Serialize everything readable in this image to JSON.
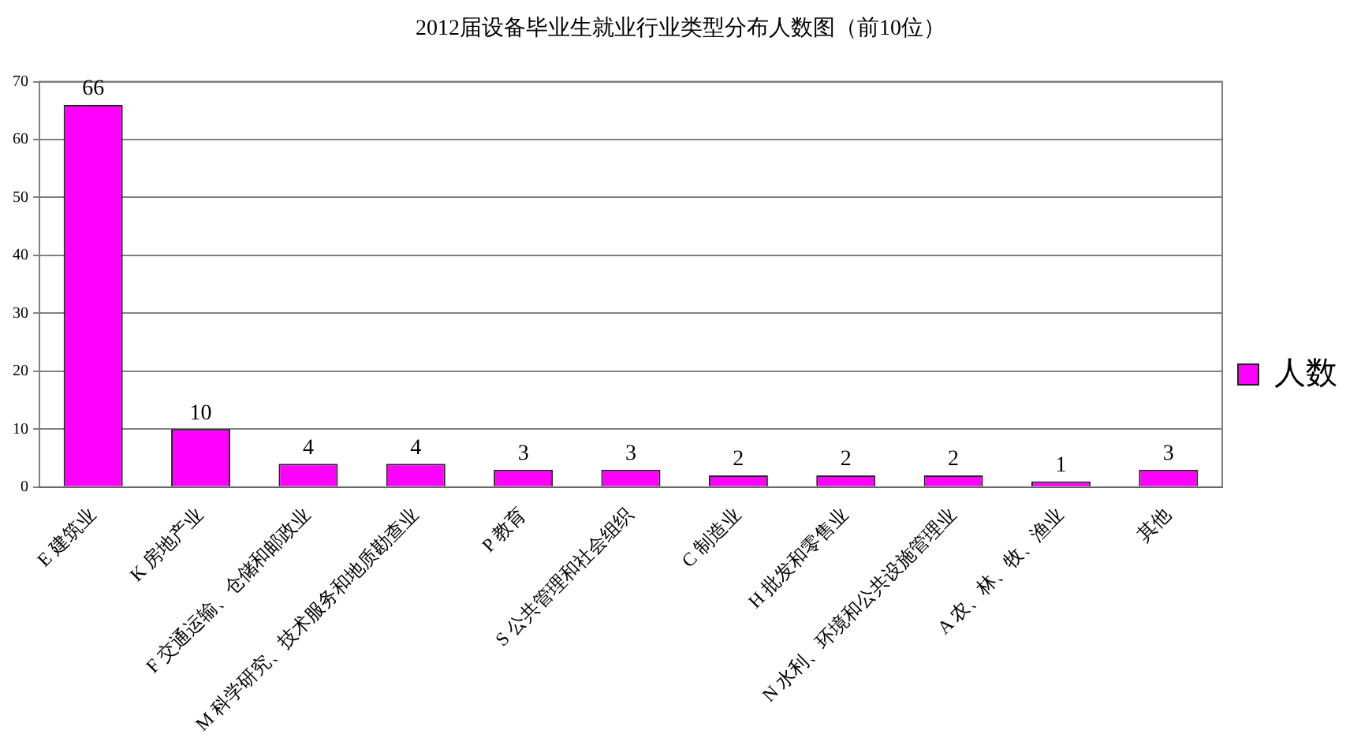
{
  "chart_data": {
    "type": "bar",
    "title": "2012届设备毕业生就业行业类型分布人数图（前10位）",
    "categories": [
      "E 建筑业",
      "K 房地产业",
      "F 交通运输、仓储和邮政业",
      "M 科学研究、技术服务和地质勘查业",
      "P 教育",
      "S 公共管理和社会组织",
      "C 制造业",
      "H 批发和零售业",
      "N 水利、环境和公共设施管理业",
      "A 农、林、牧、渔业",
      "其他"
    ],
    "series": [
      {
        "name": "人数",
        "color": "#ff00ff",
        "values": [
          66,
          10,
          4,
          4,
          3,
          3,
          2,
          2,
          2,
          1,
          3
        ]
      }
    ],
    "ylim": [
      0,
      70
    ],
    "yticks": [
      0,
      10,
      20,
      30,
      40,
      50,
      60,
      70
    ],
    "grid": "y",
    "legend": "right",
    "data_labels": true
  }
}
